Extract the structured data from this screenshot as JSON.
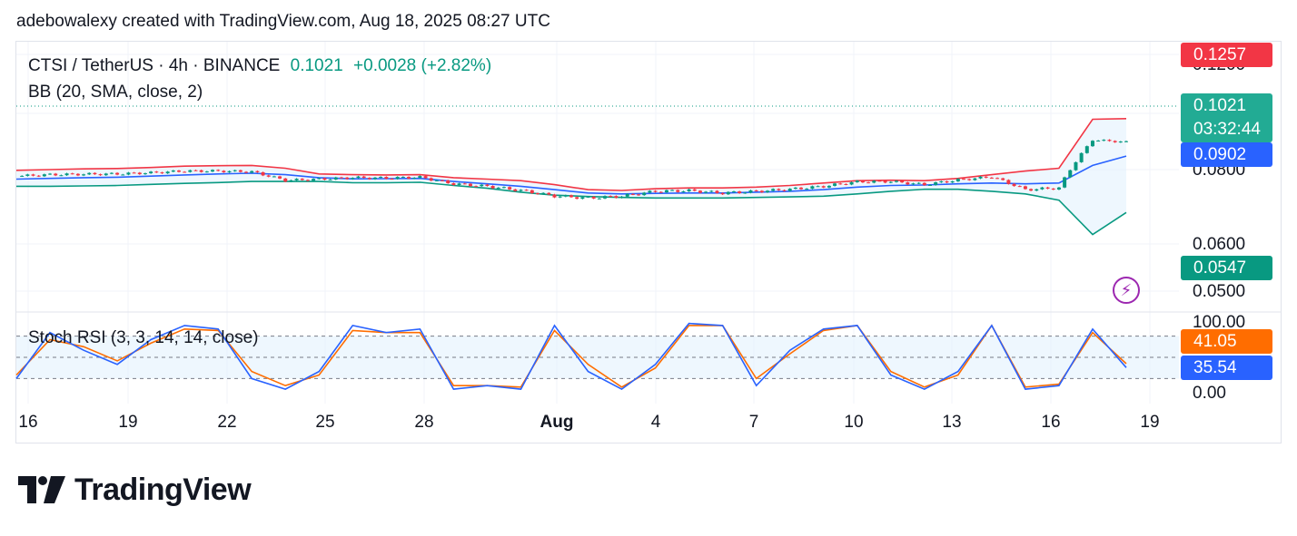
{
  "header": {
    "caption": "adebowalexy created with TradingView.com, Aug 18, 2025 08:27 UTC"
  },
  "legend": {
    "symbol": "CTSI / TetherUS · 4h · BINANCE",
    "price": "0.1021",
    "change": "+0.0028 (+2.82%)",
    "indicator": "BB (20, SMA, close, 2)",
    "oscillator": "Stoch RSI (3, 3, 14, 14, close)"
  },
  "badges": {
    "upper": "0.1257",
    "last": "0.1021",
    "countdown": "03:32:44",
    "basis": "0.0902",
    "lower": "0.0547",
    "stoch_d": "41.05",
    "stoch_k": "35.54"
  },
  "colors": {
    "up": "#089981",
    "down": "#f23645",
    "bb_upper": "#f23645",
    "bb_basis": "#2962ff",
    "bb_lower": "#089981",
    "bb_fill": "#e3f2fd",
    "stoch_k": "#2962ff",
    "stoch_d": "#ff6d00",
    "last_badge": "#22ab94",
    "lightning": "#9c27b0"
  },
  "icons": {
    "alert": "lightning-icon",
    "logo": "tradingview-logo-icon"
  },
  "logo_text": "TradingView",
  "price_axis": {
    "ticks": [
      "0.1200",
      "0.0800",
      "0.0600",
      "0.0500"
    ]
  },
  "stoch_axis": {
    "ticks": [
      "100.00",
      "0.00"
    ]
  },
  "time_axis": {
    "ticks": [
      "16",
      "19",
      "22",
      "25",
      "28",
      "Aug",
      "4",
      "7",
      "10",
      "13",
      "16",
      "19"
    ]
  },
  "chart_data": [
    {
      "type": "line",
      "title": "CTSI / TetherUS · 4h · BINANCE",
      "scale": "log",
      "x": [
        "Jul 16",
        "Jul 17",
        "Jul 18",
        "Jul 19",
        "Jul 20",
        "Jul 21",
        "Jul 22",
        "Jul 23",
        "Jul 24",
        "Jul 25",
        "Jul 26",
        "Jul 27",
        "Jul 28",
        "Jul 29",
        "Jul 30",
        "Jul 31",
        "Aug 1",
        "Aug 2",
        "Aug 3",
        "Aug 4",
        "Aug 5",
        "Aug 6",
        "Aug 7",
        "Aug 8",
        "Aug 9",
        "Aug 10",
        "Aug 11",
        "Aug 12",
        "Aug 13",
        "Aug 14",
        "Aug 15",
        "Aug 16",
        "Aug 17",
        "Aug 18"
      ],
      "series": [
        {
          "name": "close",
          "values": [
            0.0755,
            0.0765,
            0.0768,
            0.077,
            0.0778,
            0.079,
            0.079,
            0.0785,
            0.0727,
            0.0735,
            0.0745,
            0.0742,
            0.0748,
            0.0705,
            0.069,
            0.0665,
            0.0633,
            0.0622,
            0.0632,
            0.066,
            0.0664,
            0.065,
            0.066,
            0.0672,
            0.069,
            0.0718,
            0.072,
            0.07,
            0.073,
            0.075,
            0.067,
            0.068,
            0.104,
            0.1021
          ]
        },
        {
          "name": "BB upper",
          "values": [
            0.0795,
            0.08,
            0.0805,
            0.0808,
            0.0815,
            0.0825,
            0.0828,
            0.083,
            0.081,
            0.077,
            0.0765,
            0.0763,
            0.0765,
            0.0745,
            0.0735,
            0.0725,
            0.07,
            0.067,
            0.0665,
            0.0675,
            0.068,
            0.068,
            0.0685,
            0.0695,
            0.071,
            0.0725,
            0.0728,
            0.0725,
            0.074,
            0.0765,
            0.079,
            0.081,
            0.125,
            0.1257
          ]
        },
        {
          "name": "BB basis",
          "values": [
            0.0735,
            0.074,
            0.0745,
            0.0748,
            0.0755,
            0.0763,
            0.077,
            0.0775,
            0.0765,
            0.0745,
            0.0737,
            0.0738,
            0.074,
            0.072,
            0.0705,
            0.069,
            0.067,
            0.065,
            0.0645,
            0.0648,
            0.065,
            0.065,
            0.0655,
            0.066,
            0.067,
            0.0685,
            0.0695,
            0.0698,
            0.0705,
            0.071,
            0.0705,
            0.071,
            0.083,
            0.0902
          ]
        },
        {
          "name": "BB lower",
          "values": [
            0.069,
            0.069,
            0.0692,
            0.0695,
            0.0702,
            0.0708,
            0.0713,
            0.072,
            0.072,
            0.072,
            0.0712,
            0.0712,
            0.0715,
            0.0695,
            0.0678,
            0.0655,
            0.0638,
            0.063,
            0.0625,
            0.0622,
            0.0622,
            0.0622,
            0.0625,
            0.0628,
            0.0632,
            0.0645,
            0.066,
            0.0672,
            0.0672,
            0.066,
            0.0645,
            0.061,
            0.045,
            0.0547
          ]
        }
      ]
    },
    {
      "type": "line",
      "title": "Stoch RSI (3, 3, 14, 14, close)",
      "ylim": [
        0,
        100
      ],
      "x": [
        "Jul 16",
        "Jul 17",
        "Jul 18",
        "Jul 19",
        "Jul 20",
        "Jul 21",
        "Jul 22",
        "Jul 23",
        "Jul 24",
        "Jul 25",
        "Jul 26",
        "Jul 27",
        "Jul 28",
        "Jul 29",
        "Jul 30",
        "Jul 31",
        "Aug 1",
        "Aug 2",
        "Aug 3",
        "Aug 4",
        "Aug 5",
        "Aug 6",
        "Aug 7",
        "Aug 8",
        "Aug 9",
        "Aug 10",
        "Aug 11",
        "Aug 12",
        "Aug 13",
        "Aug 14",
        "Aug 15",
        "Aug 16",
        "Aug 17",
        "Aug 18"
      ],
      "series": [
        {
          "name": "K",
          "values": [
            20,
            85,
            60,
            40,
            75,
            95,
            90,
            20,
            5,
            30,
            95,
            85,
            90,
            5,
            10,
            5,
            95,
            30,
            5,
            40,
            98,
            95,
            10,
            60,
            90,
            95,
            25,
            5,
            30,
            95,
            5,
            10,
            90,
            35.54
          ]
        },
        {
          "name": "D",
          "values": [
            25,
            75,
            65,
            45,
            70,
            90,
            88,
            30,
            10,
            25,
            88,
            85,
            85,
            10,
            10,
            8,
            88,
            40,
            8,
            35,
            95,
            95,
            20,
            55,
            88,
            95,
            30,
            8,
            25,
            95,
            8,
            12,
            85,
            41.05
          ]
        }
      ]
    }
  ]
}
